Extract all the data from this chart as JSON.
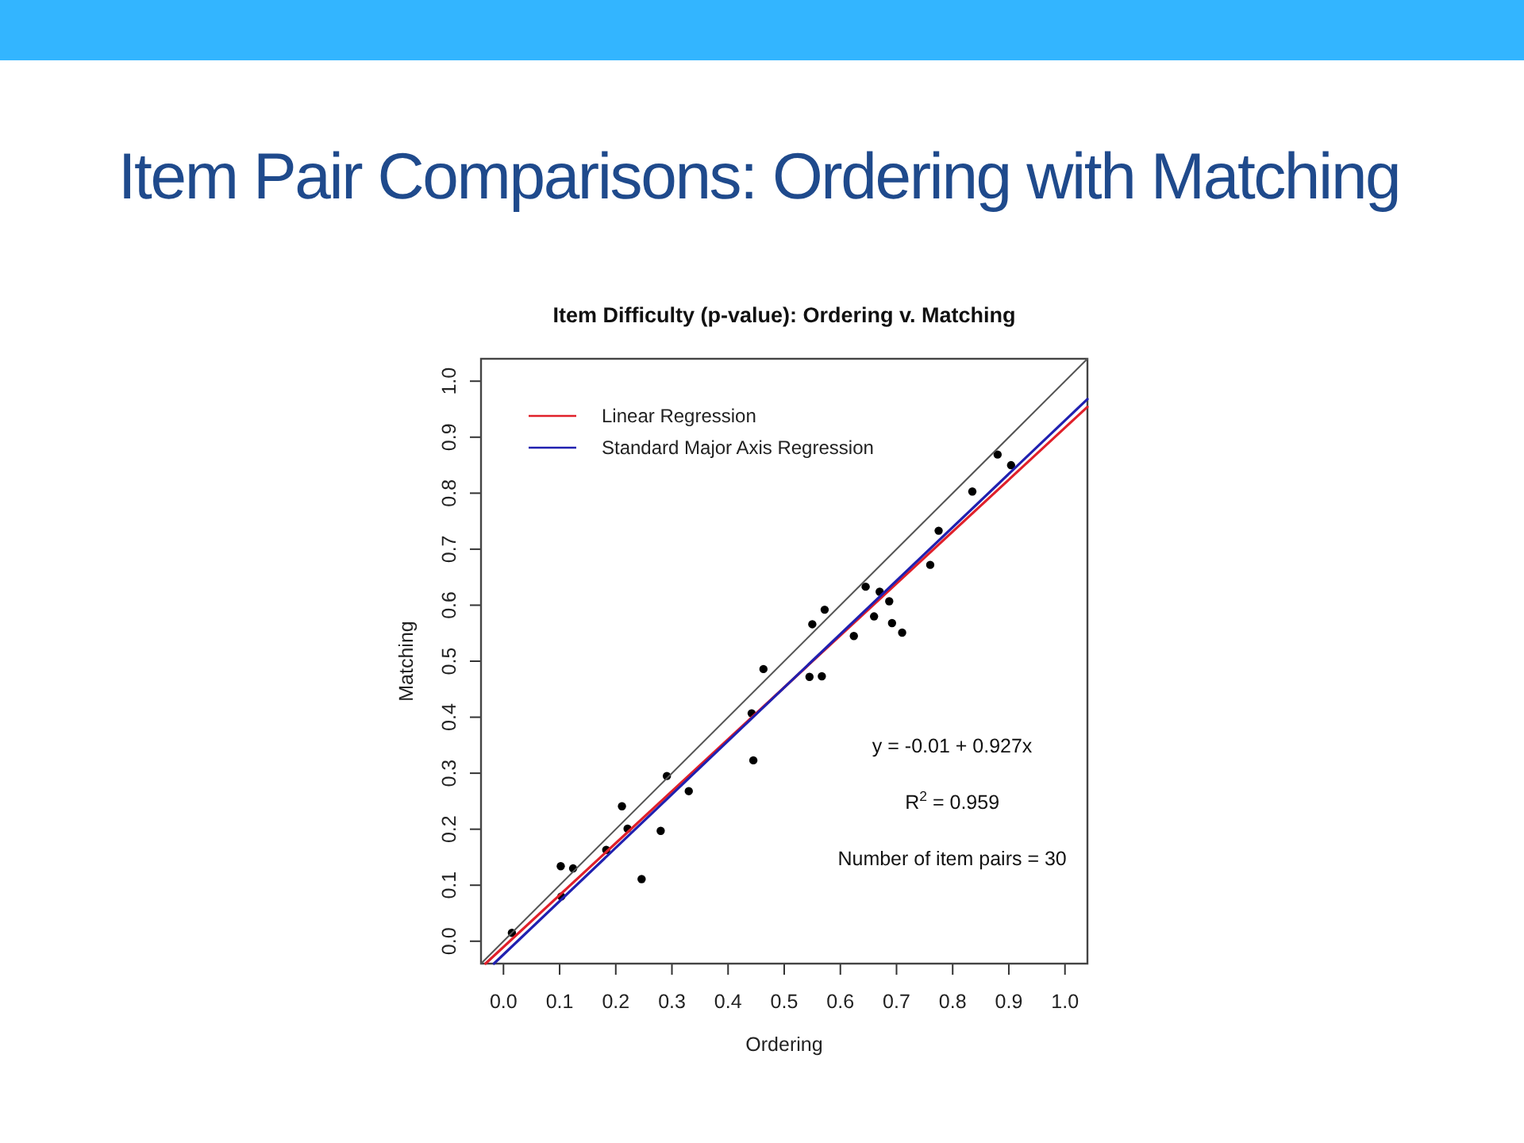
{
  "chart_data": {
    "type": "scatter",
    "title": "Item Pair Comparisons: Ordering with Matching",
    "subtitle": "Item Difficulty (p-value): Ordering v. Matching",
    "xlabel": "Ordering",
    "ylabel": "Matching",
    "xlim": [
      -0.04,
      1.04
    ],
    "ylim": [
      -0.04,
      1.04
    ],
    "xticks": [
      {
        "value": 0,
        "label": "0.0"
      },
      0.1,
      0.2,
      0.3,
      0.4,
      0.5,
      0.6,
      0.7,
      0.8,
      0.9,
      {
        "value": 1,
        "label": "1.0"
      }
    ],
    "yticks": [
      {
        "value": 0,
        "label": "0.0"
      },
      0.1,
      0.2,
      0.3,
      0.4,
      0.5,
      0.6,
      0.7,
      0.8,
      0.9,
      {
        "value": 1,
        "label": "1.0"
      }
    ],
    "legend": "top left",
    "series": [
      {
        "type": "scatter",
        "color": "#000000",
        "marker": "circle",
        "x": [
          0.015,
          0.102,
          0.124,
          0.103,
          0.183,
          0.211,
          0.221,
          0.246,
          0.28,
          0.291,
          0.33,
          0.445,
          0.442,
          0.463,
          0.545,
          0.567,
          0.55,
          0.572,
          0.624,
          0.645,
          0.66,
          0.67,
          0.687,
          0.692,
          0.71,
          0.76,
          0.775,
          0.835,
          0.88,
          0.904
        ],
        "values": [
          0.015,
          0.134,
          0.13,
          0.08,
          0.163,
          0.241,
          0.201,
          0.111,
          0.197,
          0.295,
          0.268,
          0.323,
          0.407,
          0.486,
          0.472,
          0.473,
          0.566,
          0.592,
          0.545,
          0.633,
          0.58,
          0.624,
          0.607,
          0.568,
          0.551,
          0.672,
          0.733,
          0.803,
          0.869,
          0.85
        ]
      },
      {
        "type": "line",
        "color": "#555555",
        "x": [
          -0.04,
          1.04
        ],
        "values": [
          -0.04,
          1.04
        ]
      },
      {
        "type": "line",
        "name": "Linear Regression",
        "color": "#e0202a",
        "x": [
          -0.032,
          1.04
        ],
        "values": [
          -0.04,
          0.954
        ]
      },
      {
        "type": "line",
        "name": "Standard Major Axis Regression",
        "color": "#2020b0",
        "x": [
          -0.017,
          1.04
        ],
        "values": [
          -0.04,
          0.968
        ]
      }
    ],
    "annotations": [
      "y = -0.01 + 0.927x",
      "R$^{2}$ = 0.959",
      "Number of item pairs = 30"
    ]
  }
}
